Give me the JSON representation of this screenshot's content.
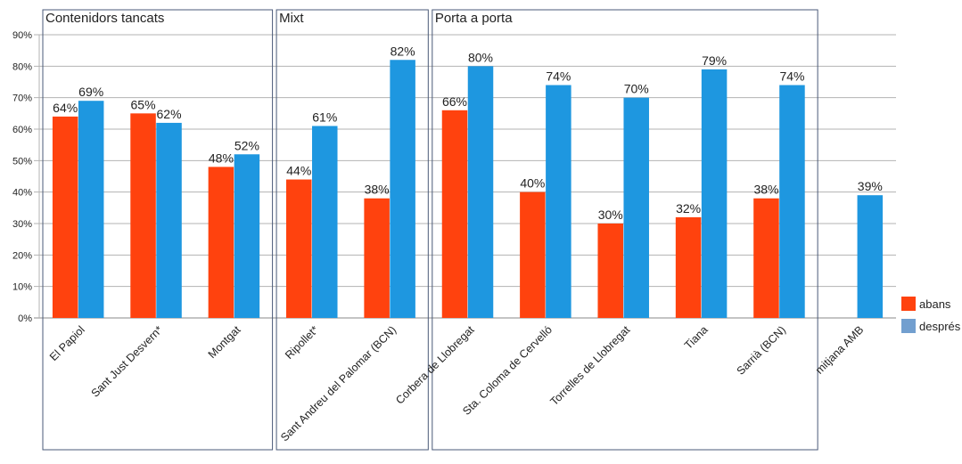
{
  "chart_data": {
    "type": "bar",
    "title": "",
    "xlabel": "",
    "ylabel": "",
    "ylim": [
      0,
      90
    ],
    "y_ticks": [
      "0%",
      "10%",
      "20%",
      "30%",
      "40%",
      "50%",
      "60%",
      "70%",
      "80%",
      "90%"
    ],
    "grid": true,
    "legend_position": "right",
    "categories": [
      "El Papiol",
      "Sant Just Desvern*",
      "Montgat",
      "Ripollet*",
      "Sant Andreu del Palomar (BCN)",
      "Corbera de Llobregat",
      "Sta. Coloma de Cervelló",
      "Torrelles de Llobregat",
      "Tiana",
      "Sarrià (BCN)",
      "mitjana AMB"
    ],
    "series": [
      {
        "name": "abans",
        "color": "#ff420e",
        "values": [
          64,
          65,
          48,
          44,
          38,
          66,
          40,
          30,
          32,
          38,
          null
        ],
        "labels": [
          "64%",
          "65%",
          "48%",
          "44%",
          "38%",
          "66%",
          "40%",
          "30%",
          "32%",
          "38%",
          ""
        ]
      },
      {
        "name": "després",
        "color": "#1e97e0",
        "values": [
          69,
          62,
          52,
          61,
          82,
          80,
          74,
          70,
          79,
          74,
          39
        ],
        "labels": [
          "69%",
          "62%",
          "52%",
          "61%",
          "82%",
          "80%",
          "74%",
          "70%",
          "79%",
          "74%",
          "39%"
        ]
      }
    ],
    "legend_colors": [
      "#ff420e",
      "#729fcf"
    ],
    "groups": [
      {
        "label": "Contenidors tancats",
        "start": 0,
        "end": 2
      },
      {
        "label": "Mixt",
        "start": 3,
        "end": 4
      },
      {
        "label": "Porta a porta",
        "start": 5,
        "end": 9
      }
    ]
  }
}
